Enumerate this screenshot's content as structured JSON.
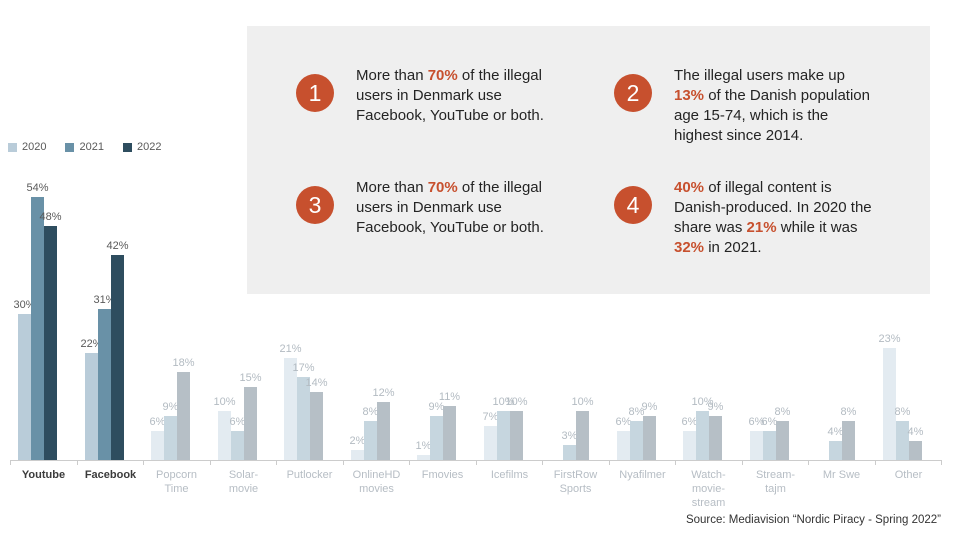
{
  "source": "Source: Mediavision “Nordic Piracy - Spring 2022”",
  "callouts": [
    {
      "number": "1",
      "segments": [
        {
          "t": "More than "
        },
        {
          "t": "70%",
          "h": true
        },
        {
          "t": " of the illegal\nusers in Denmark use\nFacebook, YouTube or both."
        }
      ]
    },
    {
      "number": "2",
      "segments": [
        {
          "t": "The illegal users make up\n"
        },
        {
          "t": "13%",
          "h": true
        },
        {
          "t": " of the Danish population\nage 15-74, which is the\nhighest since 2014."
        }
      ]
    },
    {
      "number": "3",
      "segments": [
        {
          "t": "More than "
        },
        {
          "t": "70%",
          "h": true
        },
        {
          "t": " of the illegal\nusers in Denmark use\nFacebook, YouTube or both."
        }
      ]
    },
    {
      "number": "4",
      "segments": [
        {
          "t": "40%",
          "h": true
        },
        {
          "t": " of illegal content is\nDanish-produced. In 2020 the\nshare was "
        },
        {
          "t": "21%",
          "h": true
        },
        {
          "t": " while it was\n"
        },
        {
          "t": "32%",
          "h": true
        },
        {
          "t": " in 2021."
        }
      ]
    }
  ],
  "chart_data": {
    "type": "bar",
    "title": "",
    "xlabel": "",
    "ylabel": "",
    "unit": "%",
    "ylim": [
      0,
      60
    ],
    "grid": false,
    "legend_position": "top-left",
    "categories": [
      "Youtube",
      "Facebook",
      "Popcorn\nTime",
      "Solar-\nmovie",
      "Putlocker",
      "OnlineHD\nmovies",
      "Fmovies",
      "Icefilms",
      "FirstRow\nSports",
      "Nyafilmer",
      "Watch-\nmovie-\nstream",
      "Stream-\ntajm",
      "Mr Swe",
      "Other"
    ],
    "series": [
      {
        "name": "2020",
        "values": [
          30,
          22,
          6,
          10,
          21,
          2,
          1,
          7,
          null,
          6,
          6,
          6,
          null,
          23
        ]
      },
      {
        "name": "2021",
        "values": [
          54,
          31,
          9,
          6,
          17,
          8,
          9,
          10,
          3,
          8,
          10,
          6,
          4,
          8
        ]
      },
      {
        "name": "2022",
        "values": [
          48,
          42,
          18,
          15,
          14,
          12,
          11,
          10,
          10,
          9,
          9,
          8,
          8,
          4
        ]
      }
    ],
    "emphasized_categories": [
      "Youtube",
      "Facebook"
    ]
  },
  "colors": {
    "accent": "#c7502e",
    "series": [
      "#b9ccd9",
      "#6991a7",
      "#2e4d5f"
    ],
    "series_faded": [
      "#e3ebf1",
      "#c6d6df",
      "#b6bfc6"
    ],
    "box_bg": "#efefef",
    "axis": "#cccccc",
    "value_label": "#5a5a5a",
    "value_label_faded": "#b3bbc2",
    "category_label": "#3b3b3b",
    "category_label_faded": "#b6bdc4"
  }
}
